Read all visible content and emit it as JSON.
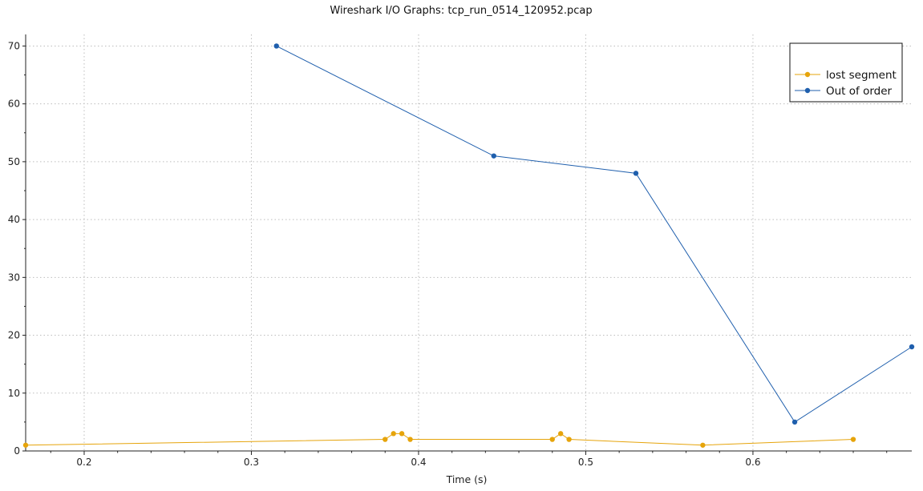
{
  "chart_data": {
    "type": "line",
    "title": "Wireshark I/O Graphs: tcp_run_0514_120952.pcap",
    "xlabel": "Time (s)",
    "ylabel": "",
    "xlim": [
      0.165,
      0.695
    ],
    "ylim": [
      0,
      72
    ],
    "x_ticks": [
      0.2,
      0.3,
      0.4,
      0.5,
      0.6
    ],
    "y_ticks": [
      0,
      10,
      20,
      30,
      40,
      50,
      60,
      70
    ],
    "x_tick_labels": [
      "0.2",
      "0.3",
      "0.4",
      "0.5",
      "0.6"
    ],
    "y_tick_labels": [
      "0",
      "10",
      "20",
      "30",
      "40",
      "50",
      "60",
      "70"
    ],
    "grid": true,
    "legend_position": "top-right",
    "series": [
      {
        "name": "lost segment",
        "color": "#e6a40b",
        "points": [
          {
            "x": 0.165,
            "y": 1
          },
          {
            "x": 0.38,
            "y": 2
          },
          {
            "x": 0.385,
            "y": 3
          },
          {
            "x": 0.39,
            "y": 3
          },
          {
            "x": 0.395,
            "y": 2
          },
          {
            "x": 0.48,
            "y": 2
          },
          {
            "x": 0.485,
            "y": 3
          },
          {
            "x": 0.49,
            "y": 2
          },
          {
            "x": 0.57,
            "y": 1
          },
          {
            "x": 0.66,
            "y": 2
          }
        ]
      },
      {
        "name": "Out of order",
        "color": "#1f5fad",
        "points": [
          {
            "x": 0.315,
            "y": 70
          },
          {
            "x": 0.445,
            "y": 51
          },
          {
            "x": 0.53,
            "y": 48
          },
          {
            "x": 0.625,
            "y": 5
          },
          {
            "x": 0.695,
            "y": 18
          }
        ]
      }
    ]
  }
}
